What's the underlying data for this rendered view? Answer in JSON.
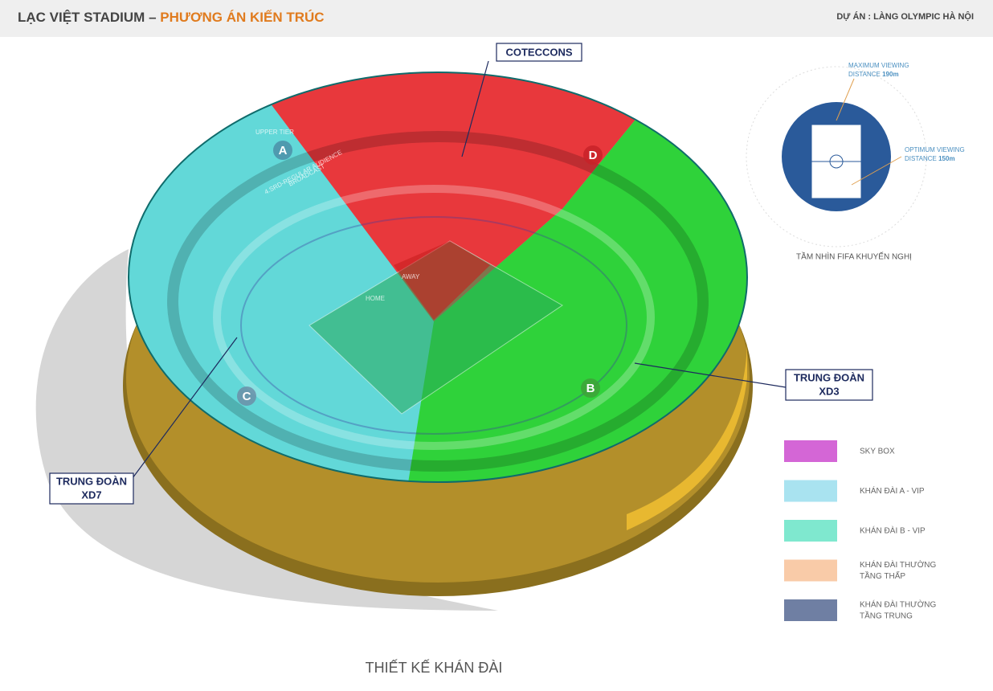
{
  "header": {
    "title": "LẠC VIỆT STADIUM –",
    "subtitle": "PHƯƠNG ÁN KIẾN TRÚC",
    "project": "DỰ ÁN : LÀNG OLYMPIC HÀ NỘI"
  },
  "callouts": [
    {
      "lines": [
        "COTECCONS"
      ]
    },
    {
      "lines": [
        "TRUNG ĐOÀN",
        "XD3"
      ]
    },
    {
      "lines": [
        "TRUNG ĐOÀN",
        "XD7"
      ]
    }
  ],
  "sections": [
    "A",
    "B",
    "C",
    "D"
  ],
  "zone_labels": [
    "BROADCAST",
    "HOME",
    "AWAY",
    "4.SRD-REGULAR AUDIENCE",
    "UPPER TIER"
  ],
  "fifa": {
    "max_label": "MAXIMUM VIEWING",
    "max_label2": "DISTANCE",
    "max_value": "190m",
    "opt_label": "OPTIMUM VIEWING",
    "opt_label2": "DISTANCE",
    "opt_value": "150m",
    "caption": "TẦM NHÌN FIFA KHUYẾN NGHỊ"
  },
  "legend": [
    {
      "lines": [
        "SKY BOX"
      ],
      "color": "#d466d6"
    },
    {
      "lines": [
        "KHÁN ĐÀI  A - VIP"
      ],
      "color": "#a9e3f0"
    },
    {
      "lines": [
        "KHÁN ĐÀI B - VIP"
      ],
      "color": "#7fe8cf"
    },
    {
      "lines": [
        "KHÁN ĐÀI THƯỜNG",
        "TẦNG THẤP"
      ],
      "color": "#f9cba8"
    },
    {
      "lines": [
        "KHÁN ĐÀI THƯỜNG",
        "TẦNG TRUNG"
      ],
      "color": "#6f7fa3"
    }
  ],
  "footer": "THIẾT KẾ KHÁN ĐÀI"
}
